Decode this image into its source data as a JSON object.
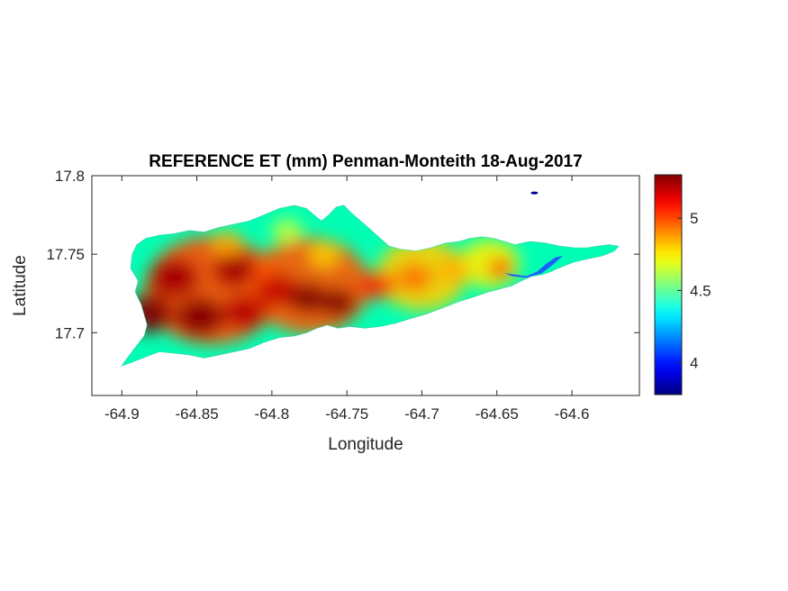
{
  "chart_data": {
    "type": "heatmap",
    "title": "REFERENCE ET (mm) Penman-Monteith 18-Aug-2017",
    "xlabel": "Longitude",
    "ylabel": "Latitude",
    "xlim": [
      -64.92,
      -64.555
    ],
    "ylim": [
      17.66,
      17.8
    ],
    "x_ticks": [
      {
        "value": -64.9,
        "label": "-64.9"
      },
      {
        "value": -64.85,
        "label": "-64.85"
      },
      {
        "value": -64.8,
        "label": "-64.8"
      },
      {
        "value": -64.75,
        "label": "-64.75"
      },
      {
        "value": -64.7,
        "label": "-64.7"
      },
      {
        "value": -64.65,
        "label": "-64.65"
      },
      {
        "value": -64.6,
        "label": "-64.6"
      }
    ],
    "y_ticks": [
      {
        "value": 17.7,
        "label": "17.7"
      },
      {
        "value": 17.75,
        "label": "17.75"
      },
      {
        "value": 17.8,
        "label": "17.8"
      }
    ],
    "colorbar": {
      "colormap": "jet",
      "range": [
        3.78,
        5.3
      ],
      "ticks": [
        {
          "value": 4,
          "label": "4"
        },
        {
          "value": 4.5,
          "label": "4.5"
        },
        {
          "value": 5,
          "label": "5"
        }
      ]
    },
    "grid": false,
    "island_outline": [
      [
        -64.9,
        17.679
      ],
      [
        -64.893,
        17.688
      ],
      [
        -64.885,
        17.698
      ],
      [
        -64.883,
        17.705
      ],
      [
        -64.887,
        17.718
      ],
      [
        -64.891,
        17.726
      ],
      [
        -64.889,
        17.733
      ],
      [
        -64.894,
        17.741
      ],
      [
        -64.893,
        17.75
      ],
      [
        -64.89,
        17.756
      ],
      [
        -64.884,
        17.76
      ],
      [
        -64.875,
        17.762
      ],
      [
        -64.865,
        17.763
      ],
      [
        -64.855,
        17.765
      ],
      [
        -64.845,
        17.764
      ],
      [
        -64.835,
        17.767
      ],
      [
        -64.825,
        17.769
      ],
      [
        -64.815,
        17.771
      ],
      [
        -64.805,
        17.775
      ],
      [
        -64.795,
        17.779
      ],
      [
        -64.785,
        17.781
      ],
      [
        -64.777,
        17.779
      ],
      [
        -64.772,
        17.775
      ],
      [
        -64.767,
        17.771
      ],
      [
        -64.762,
        17.775
      ],
      [
        -64.757,
        17.78
      ],
      [
        -64.752,
        17.781
      ],
      [
        -64.748,
        17.777
      ],
      [
        -64.742,
        17.772
      ],
      [
        -64.736,
        17.767
      ],
      [
        -64.729,
        17.761
      ],
      [
        -64.722,
        17.755
      ],
      [
        -64.714,
        17.753
      ],
      [
        -64.704,
        17.752
      ],
      [
        -64.694,
        17.754
      ],
      [
        -64.684,
        17.757
      ],
      [
        -64.675,
        17.758
      ],
      [
        -64.668,
        17.76
      ],
      [
        -64.66,
        17.761
      ],
      [
        -64.652,
        17.76
      ],
      [
        -64.645,
        17.758
      ],
      [
        -64.638,
        17.756
      ],
      [
        -64.628,
        17.758
      ],
      [
        -64.618,
        17.757
      ],
      [
        -64.608,
        17.755
      ],
      [
        -64.598,
        17.754
      ],
      [
        -64.59,
        17.754
      ],
      [
        -64.583,
        17.755
      ],
      [
        -64.575,
        17.756
      ],
      [
        -64.569,
        17.755
      ],
      [
        -64.572,
        17.752
      ],
      [
        -64.58,
        17.749
      ],
      [
        -64.59,
        17.747
      ],
      [
        -64.599,
        17.745
      ],
      [
        -64.607,
        17.742
      ],
      [
        -64.614,
        17.739
      ],
      [
        -64.62,
        17.737
      ],
      [
        -64.627,
        17.736
      ],
      [
        -64.634,
        17.733
      ],
      [
        -64.64,
        17.73
      ],
      [
        -64.648,
        17.728
      ],
      [
        -64.656,
        17.726
      ],
      [
        -64.665,
        17.723
      ],
      [
        -64.675,
        17.72
      ],
      [
        -64.686,
        17.716
      ],
      [
        -64.697,
        17.712
      ],
      [
        -64.708,
        17.709
      ],
      [
        -64.718,
        17.706
      ],
      [
        -64.728,
        17.704
      ],
      [
        -64.738,
        17.703
      ],
      [
        -64.748,
        17.704
      ],
      [
        -64.756,
        17.703
      ],
      [
        -64.763,
        17.705
      ],
      [
        -64.77,
        17.703
      ],
      [
        -64.777,
        17.7
      ],
      [
        -64.785,
        17.698
      ],
      [
        -64.795,
        17.697
      ],
      [
        -64.805,
        17.694
      ],
      [
        -64.815,
        17.69
      ],
      [
        -64.825,
        17.688
      ],
      [
        -64.835,
        17.686
      ],
      [
        -64.845,
        17.684
      ],
      [
        -64.855,
        17.686
      ],
      [
        -64.865,
        17.687
      ],
      [
        -64.875,
        17.688
      ],
      [
        -64.886,
        17.684
      ],
      [
        -64.894,
        17.681
      ],
      [
        -64.9,
        17.679
      ]
    ],
    "east_tip_outline": [
      [
        -64.645,
        17.738
      ],
      [
        -64.638,
        17.737
      ],
      [
        -64.63,
        17.736
      ],
      [
        -64.623,
        17.739
      ],
      [
        -64.617,
        17.744
      ],
      [
        -64.611,
        17.748
      ],
      [
        -64.606,
        17.749
      ],
      [
        -64.613,
        17.743
      ],
      [
        -64.62,
        17.738
      ],
      [
        -64.63,
        17.735
      ],
      [
        -64.64,
        17.736
      ],
      [
        -64.645,
        17.738
      ]
    ],
    "islet": {
      "lon": -64.625,
      "lat": 17.789,
      "value": 3.8
    },
    "hotspots": [
      {
        "lon": -64.882,
        "lat": 17.712,
        "value": 5.35,
        "radius": 0.016
      },
      {
        "lon": -64.865,
        "lat": 17.735,
        "value": 5.25,
        "radius": 0.016
      },
      {
        "lon": -64.848,
        "lat": 17.71,
        "value": 5.3,
        "radius": 0.016
      },
      {
        "lon": -64.825,
        "lat": 17.74,
        "value": 5.25,
        "radius": 0.014
      },
      {
        "lon": -64.818,
        "lat": 17.713,
        "value": 5.22,
        "radius": 0.014
      },
      {
        "lon": -64.796,
        "lat": 17.727,
        "value": 5.2,
        "radius": 0.014
      },
      {
        "lon": -64.776,
        "lat": 17.722,
        "value": 5.3,
        "radius": 0.013
      },
      {
        "lon": -64.756,
        "lat": 17.719,
        "value": 5.3,
        "radius": 0.012
      },
      {
        "lon": -64.73,
        "lat": 17.73,
        "value": 5.05,
        "radius": 0.012
      },
      {
        "lon": -64.705,
        "lat": 17.735,
        "value": 4.95,
        "radius": 0.012
      },
      {
        "lon": -64.679,
        "lat": 17.74,
        "value": 4.85,
        "radius": 0.011
      },
      {
        "lon": -64.648,
        "lat": 17.741,
        "value": 5.1,
        "radius": 0.008
      },
      {
        "lon": -64.83,
        "lat": 17.757,
        "value": 4.85,
        "radius": 0.01
      },
      {
        "lon": -64.79,
        "lat": 17.765,
        "value": 4.65,
        "radius": 0.01
      },
      {
        "lon": -64.765,
        "lat": 17.75,
        "value": 4.8,
        "radius": 0.01
      }
    ]
  }
}
